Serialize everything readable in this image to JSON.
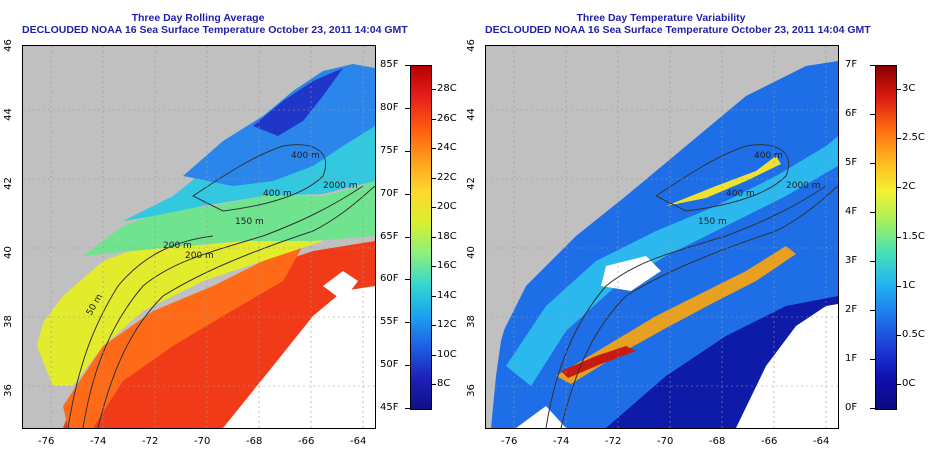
{
  "left_panel": {
    "title_line1": "Three Day Rolling Average",
    "title_line2": "DECLOUDED NOAA 16 Sea Surface Temperature October 23, 2011 14:04 GMT",
    "contour_labels": [
      "400 m",
      "2000 m",
      "400 m",
      "150 m",
      "200 m",
      "50 m",
      "200 m"
    ],
    "colorbar": {
      "left_labels": [
        "85F",
        "80F",
        "75F",
        "70F",
        "65F",
        "60F",
        "55F",
        "50F",
        "45F"
      ],
      "right_labels": [
        "28C",
        "26C",
        "24C",
        "22C",
        "20C",
        "18C",
        "16C",
        "14C",
        "12C",
        "10C",
        "8C"
      ],
      "colors": [
        "#b30000",
        "#e8201c",
        "#ff5a10",
        "#ff9d1a",
        "#ffd62e",
        "#d9f02e",
        "#8df07a",
        "#36d7d0",
        "#1aa3f0",
        "#1e5fe6",
        "#1d21b8",
        "#10108a"
      ]
    }
  },
  "right_panel": {
    "title_line1": "Three Day Temperature Variability",
    "title_line2": "DECLOUDED NOAA 16 Sea Surface Temperature October 23, 2011 14:04 GMT",
    "contour_labels": [
      "400 m",
      "2000 m",
      "400 m",
      "150 m"
    ],
    "colorbar": {
      "left_labels": [
        "7F",
        "6F",
        "5F",
        "4F",
        "3F",
        "2F",
        "1F",
        "0F"
      ],
      "right_labels": [
        "3C",
        "2.5C",
        "2C",
        "1.5C",
        "1C",
        "0.5C",
        "0C"
      ],
      "colors": [
        "#8a0000",
        "#d91a10",
        "#ff6a10",
        "#ffb41e",
        "#f4f030",
        "#a3f060",
        "#46e0b8",
        "#22b4f0",
        "#1e78ec",
        "#1c3ed8",
        "#1010b0",
        "#0a0a80"
      ]
    }
  },
  "axes": {
    "lat_labels": [
      "46",
      "44",
      "42",
      "40",
      "38",
      "36"
    ],
    "lon_labels": [
      "-76",
      "-74",
      "-72",
      "-70",
      "-68",
      "-66",
      "-64"
    ]
  },
  "map_colors": {
    "land": "#c0c0c0",
    "cloud": "#ffffff"
  }
}
